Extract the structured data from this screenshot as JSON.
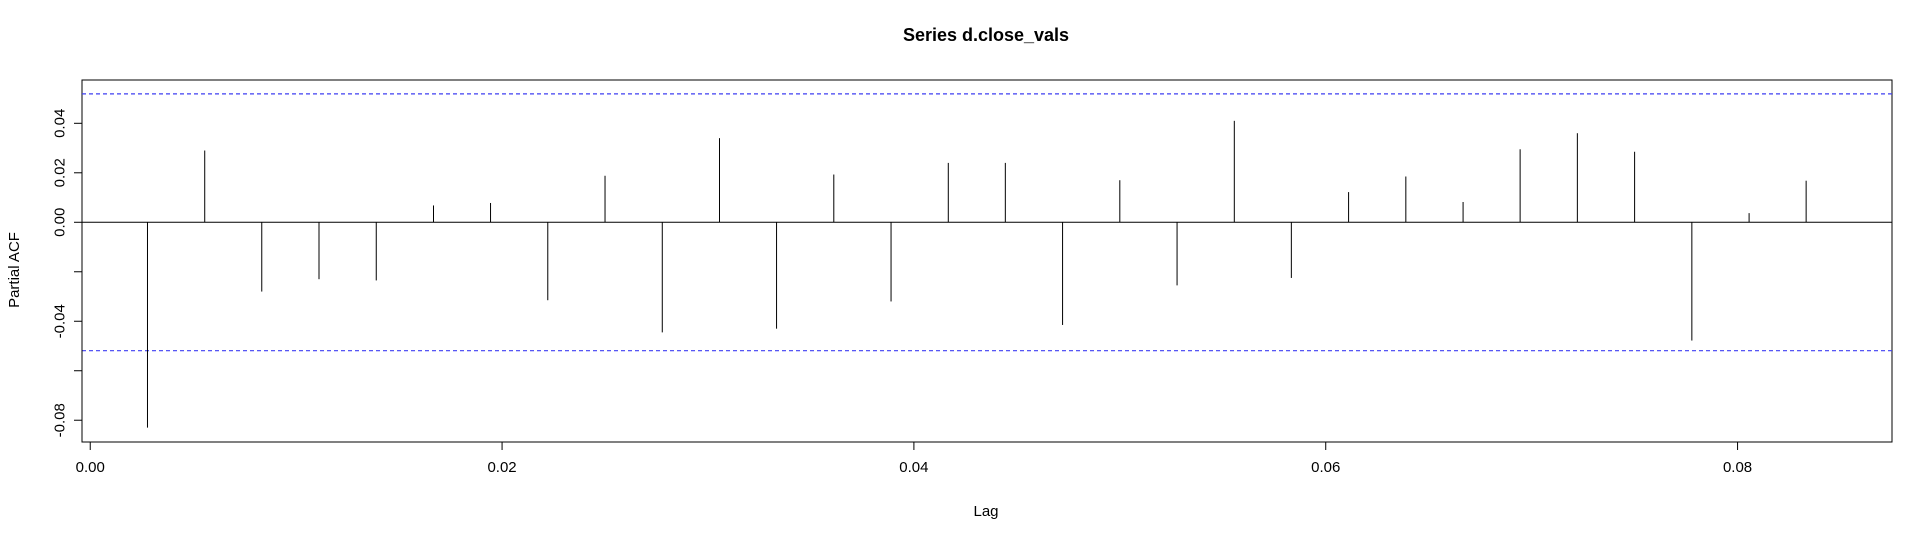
{
  "chart_data": {
    "type": "bar",
    "title": "Series  d.close_vals",
    "xlabel": "Lag",
    "ylabel": "Partial ACF",
    "xlim": [
      -0.0004,
      0.0875
    ],
    "ylim": [
      -0.0888,
      0.0575
    ],
    "x_ticks": [
      "0.00",
      "0.02",
      "0.04",
      "0.06",
      "0.08"
    ],
    "y_ticks": [
      "-0.08",
      "-0.04",
      "0.00",
      "0.02",
      "0.04"
    ],
    "confidence_limits": [
      0.0519,
      -0.0519
    ],
    "x": [
      0.00278,
      0.00556,
      0.00833,
      0.01111,
      0.01389,
      0.01667,
      0.01944,
      0.02222,
      0.025,
      0.02778,
      0.03056,
      0.03333,
      0.03611,
      0.03889,
      0.04167,
      0.04444,
      0.04722,
      0.05,
      0.05278,
      0.05556,
      0.05833,
      0.06111,
      0.06389,
      0.06667,
      0.06944,
      0.07222,
      0.075,
      0.07778,
      0.08056,
      0.08333
    ],
    "values": [
      -0.083,
      0.029,
      -0.028,
      -0.023,
      -0.0235,
      0.0068,
      0.0078,
      -0.0315,
      0.0188,
      -0.0445,
      0.034,
      -0.043,
      0.0193,
      -0.032,
      0.024,
      0.024,
      -0.0415,
      0.017,
      -0.0255,
      0.041,
      -0.0225,
      0.0122,
      0.0185,
      0.0082,
      0.0295,
      0.036,
      0.0285,
      -0.0478,
      0.0037,
      0.0168
    ],
    "colors": {
      "bars": "#000000",
      "confidence": "#3f3ff2",
      "axes": "#000000"
    }
  }
}
